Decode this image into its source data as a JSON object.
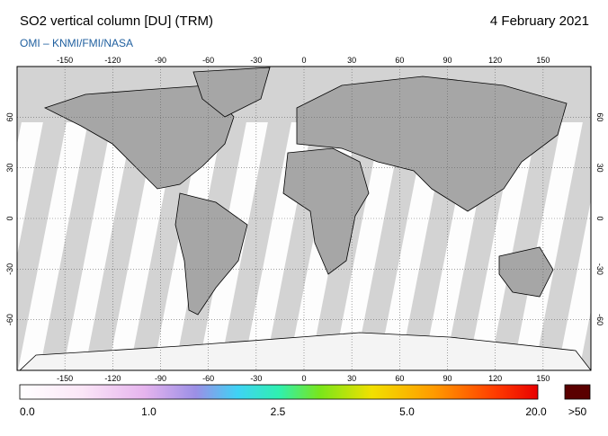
{
  "header": {
    "title": "SO2 vertical column [DU] (TRM)",
    "date": "4 February 2021",
    "source": "OMI  –  KNMI/FMI/NASA"
  },
  "map": {
    "lon_range": [
      -180,
      180
    ],
    "lat_range": [
      -90,
      90
    ],
    "lon_ticks": [
      -150,
      -120,
      -90,
      -60,
      -30,
      0,
      30,
      60,
      90,
      120,
      150
    ],
    "lat_ticks": [
      -60,
      -30,
      0,
      30,
      60
    ]
  },
  "colorbar": {
    "labels": [
      "0.0",
      "1.0",
      "2.5",
      "5.0",
      "20.0"
    ],
    "overflow_label": ">50"
  }
}
